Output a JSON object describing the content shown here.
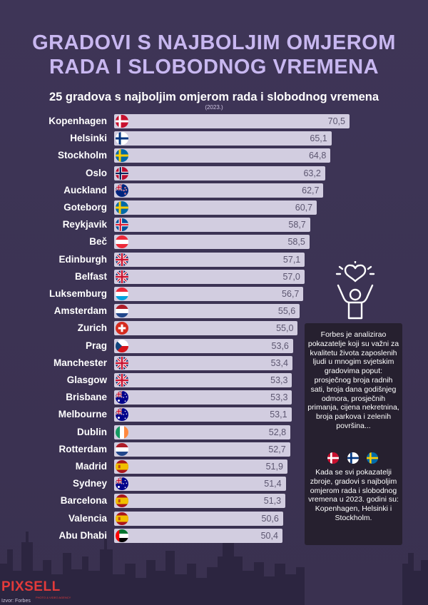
{
  "header": {
    "title_line1": "GRADOVI S NAJBOLJIM OMJEROM",
    "title_line2": "RADA I SLOBODNOG VREMENA",
    "subtitle": "25 gradova s najboljim omjerom rada i slobodnog vremena",
    "year": "(2023.)"
  },
  "chart_data": {
    "type": "bar",
    "orientation": "horizontal",
    "title": "25 gradova s najboljim omjerom rada i slobodnog vremena",
    "subtitle": "(2023.)",
    "categories": [
      "Kopenhagen",
      "Helsinki",
      "Stockholm",
      "Oslo",
      "Auckland",
      "Goteborg",
      "Reykjavik",
      "Beč",
      "Edinburgh",
      "Belfast",
      "Luksemburg",
      "Amsterdam",
      "Zurich",
      "Prag",
      "Manchester",
      "Glasgow",
      "Brisbane",
      "Melbourne",
      "Dublin",
      "Rotterdam",
      "Madrid",
      "Sydney",
      "Barcelona",
      "Valencia",
      "Abu Dhabi"
    ],
    "values": [
      70.5,
      65.1,
      64.8,
      63.2,
      62.7,
      60.7,
      58.7,
      58.5,
      57.1,
      57.0,
      56.7,
      55.6,
      55.0,
      53.6,
      53.4,
      53.3,
      53.3,
      53.1,
      52.8,
      52.7,
      51.9,
      51.4,
      51.3,
      50.6,
      50.4
    ],
    "value_labels": [
      "70,5",
      "65,1",
      "64,8",
      "63,2",
      "62,7",
      "60,7",
      "58,7",
      "58,5",
      "57,1",
      "57,0",
      "56,7",
      "55,6",
      "55,0",
      "53,6",
      "53,4",
      "53,3",
      "53,3",
      "53,1",
      "52,8",
      "52,7",
      "51,9",
      "51,4",
      "51,3",
      "50,6",
      "50,4"
    ],
    "flags": [
      "dk",
      "fi",
      "se",
      "no",
      "nz",
      "se",
      "is",
      "at",
      "gb",
      "gb",
      "lu",
      "nl",
      "ch",
      "cz",
      "gb",
      "gb",
      "au",
      "au",
      "ie",
      "nl",
      "es",
      "au",
      "es",
      "es",
      "ae"
    ],
    "bar_color": "#d2cde0",
    "value_color": "#5c5670"
  },
  "info": {
    "text1": "Forbes je analizirao pokazatelje koji su važni za kvalitetu života zaposlenih ljudi u mnogim svjetskim gradovima poput: prosječnog broja radnih sati, broja dana godišnjeg odmora, prosječnih primanja, cijena nekretnina, broja parkova i zelenih površina...",
    "text2": "Kada se svi pokazatelji zbroje, gradovi s najboljim omjerom rada i slobodnog vremena u 2023. godini su: Kopenhagen, Helsinki i Stockholm.",
    "flags": [
      "dk",
      "fi",
      "se"
    ],
    "icon": "heart-person-icon"
  },
  "footer": {
    "logo": "PIXSELL",
    "logo_sub": "PHOTO & VIDEO AGENCY",
    "source": "Izvor: Forbes"
  },
  "colors": {
    "background": "#3d3456",
    "title": "#c8b7f0",
    "infobox": "#26202f",
    "logo": "#e33a3a"
  }
}
